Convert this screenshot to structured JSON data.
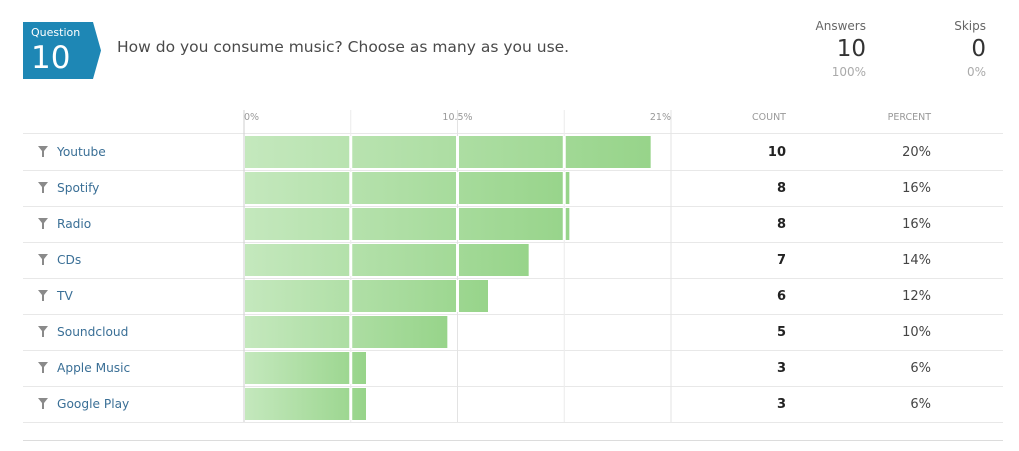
{
  "question": {
    "label": "Question",
    "number": "10",
    "text": "How do you consume music? Choose as many as you use.",
    "badge_color": "#1e87b5"
  },
  "stats": {
    "answers": {
      "label": "Answers",
      "value": "10",
      "percent": "100%"
    },
    "skips": {
      "label": "Skips",
      "value": "0",
      "percent": "0%"
    }
  },
  "table": {
    "count_header": "COUNT",
    "percent_header": "PERCENT"
  },
  "chart_data": {
    "type": "bar",
    "orientation": "horizontal",
    "xlim": [
      0,
      21
    ],
    "x_ticks": [
      "0%",
      "10.5%",
      "21%"
    ],
    "x_tick_values": [
      0,
      10.5,
      21
    ],
    "grid": true,
    "bar_color_start": "#c4e8bd",
    "bar_color_end": "#97d48a",
    "categories": [
      "Youtube",
      "Spotify",
      "Radio",
      "CDs",
      "TV",
      "Soundcloud",
      "Apple Music",
      "Google Play"
    ],
    "values": [
      20,
      16,
      16,
      14,
      12,
      10,
      6,
      6
    ],
    "counts": [
      "10",
      "8",
      "8",
      "7",
      "6",
      "5",
      "3",
      "3"
    ],
    "percent_labels": [
      "20%",
      "16%",
      "16%",
      "14%",
      "12%",
      "10%",
      "6%",
      "6%"
    ]
  }
}
